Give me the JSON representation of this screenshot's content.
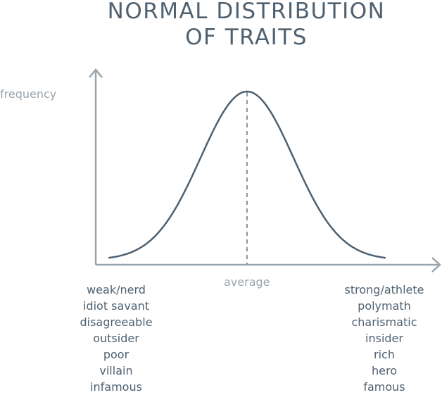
{
  "title": {
    "line1": "NORMAL DISTRIBUTION",
    "line2": "OF TRAITS"
  },
  "axes": {
    "ylabel": "frequency",
    "xlabel": "average"
  },
  "curve": {
    "type": "normal-bell-curve",
    "mean_marker": "dashed-vertical-line"
  },
  "left_traits": [
    "weak/nerd",
    "idiot savant",
    "disagreeable",
    "outsider",
    "poor",
    "villain",
    "infamous"
  ],
  "right_traits": [
    "strong/athlete",
    "polymath",
    "charismatic",
    "insider",
    "rich",
    "hero",
    "famous"
  ],
  "colors": {
    "ink": "#4f6170",
    "axis": "#9aa4ad",
    "light_text": "#9aa4ad",
    "background": "#ffffff"
  }
}
